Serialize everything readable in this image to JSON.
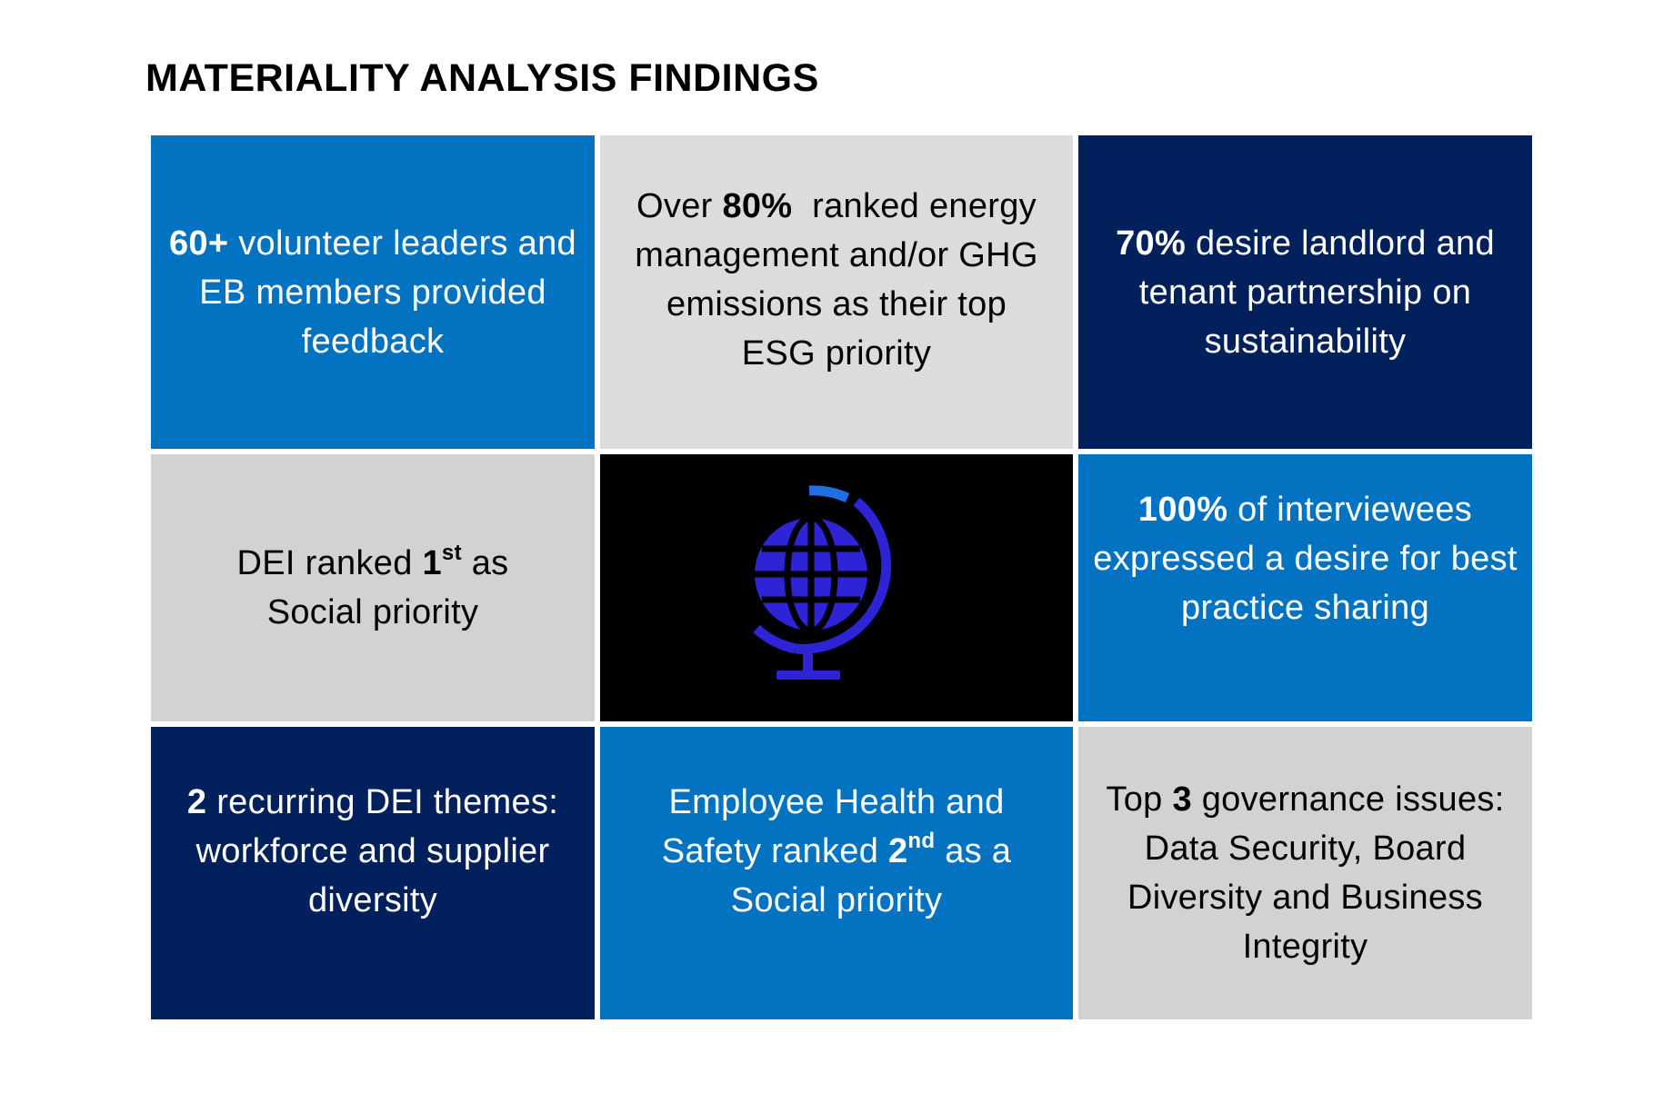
{
  "title": "MATERIALITY ANALYSIS FINDINGS",
  "colors": {
    "blue": "#0272c1",
    "gray": "#d2d2d2",
    "navy": "#02205c",
    "black": "#000000",
    "globe": "#2e24d6"
  },
  "center_icon": "globe-icon",
  "cells": {
    "c1": {
      "bold": "60+",
      "text": " volunteer leaders and EB members provided feedback"
    },
    "c2": {
      "pre": "Over ",
      "bold": "80%",
      "text": "  ranked energy management and/or GHG emissions as their top ESG priority"
    },
    "c3": {
      "bold": "70%",
      "text": " desire landlord and tenant partnership on sustainability"
    },
    "c4": {
      "pre": "DEI ranked ",
      "bold": "1",
      "sup": "st",
      "text": " as Social priority"
    },
    "c6": {
      "bold": "100%",
      "text": " of interviewees expressed a desire for best practice sharing"
    },
    "c7": {
      "bold": "2",
      "text": " recurring DEI themes: workforce and supplier diversity"
    },
    "c8": {
      "pre": "Employee Health and Safety ranked ",
      "bold": "2",
      "sup": "nd",
      "text": " as a Social priority"
    },
    "c9": {
      "pre": "Top ",
      "bold": "3",
      "text": " governance issues: Data Security, Board Diversity and Business Integrity"
    }
  }
}
